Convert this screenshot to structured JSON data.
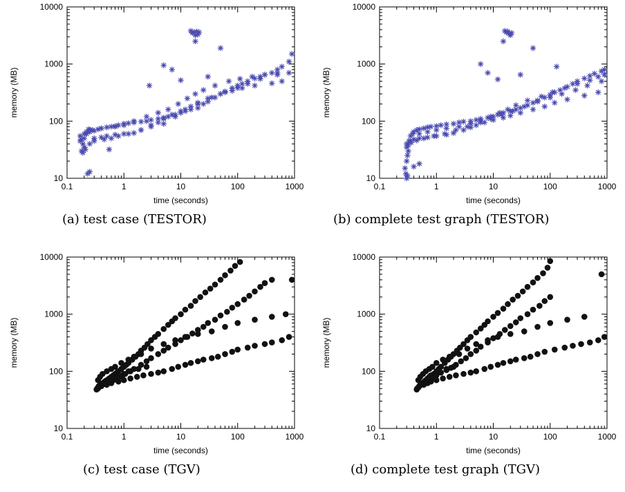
{
  "figure": {
    "marker_colors": {
      "star": "#4a4ab0",
      "dot": "#111111"
    }
  },
  "chart_data": [
    {
      "id": "a",
      "type": "scatter",
      "caption": "(a) test case (TESTOR)",
      "xlabel": "time (seconds)",
      "ylabel": "memory (MB)",
      "xscale": "log",
      "yscale": "log",
      "xlim": [
        0.1,
        1000
      ],
      "ylim": [
        10,
        10000
      ],
      "xticks": [
        "0.1",
        "1",
        "10",
        "100",
        "1000"
      ],
      "yticks": [
        "10",
        "100",
        "1000",
        "10000"
      ],
      "grid": false,
      "marker": "star",
      "color": "#4a4ab0",
      "x": [
        0.17,
        0.18,
        0.19,
        0.2,
        0.18,
        0.17,
        0.19,
        0.21,
        0.2,
        0.22,
        0.24,
        0.25,
        0.28,
        0.3,
        0.35,
        0.4,
        0.5,
        0.6,
        0.7,
        0.8,
        1,
        1.2,
        1.5,
        2,
        2.5,
        3,
        4,
        5,
        6,
        8,
        10,
        12,
        15,
        20,
        25,
        30,
        40,
        50,
        60,
        80,
        100,
        120,
        150,
        200,
        250,
        300,
        400,
        500,
        600,
        800,
        900,
        0.3,
        0.4,
        0.5,
        0.7,
        1,
        1.5,
        2,
        3,
        4,
        5,
        7,
        10,
        15,
        20,
        30,
        50,
        80,
        120,
        200,
        400,
        600,
        0.25,
        0.3,
        0.45,
        0.6,
        0.8,
        1.2,
        2,
        3,
        5,
        8,
        12,
        20,
        35,
        60,
        100,
        150,
        250,
        500,
        800,
        0.2,
        0.22,
        0.25,
        0.4,
        0.7,
        1,
        1.5,
        2.5,
        4,
        6,
        9,
        13,
        18,
        25,
        40,
        70,
        110,
        180,
        300,
        500,
        15,
        16,
        17,
        18,
        19,
        20,
        21,
        18,
        5,
        7,
        10,
        50,
        30,
        0.23,
        0.25,
        0.55,
        2.8
      ],
      "y": [
        55,
        48,
        40,
        35,
        30,
        45,
        28,
        32,
        50,
        60,
        72,
        65,
        70,
        68,
        72,
        75,
        78,
        80,
        82,
        85,
        90,
        92,
        95,
        98,
        100,
        105,
        110,
        115,
        120,
        130,
        140,
        150,
        160,
        170,
        200,
        220,
        260,
        300,
        330,
        380,
        420,
        450,
        500,
        560,
        600,
        650,
        700,
        800,
        900,
        1100,
        1500,
        50,
        52,
        55,
        58,
        60,
        62,
        70,
        80,
        95,
        110,
        130,
        150,
        180,
        210,
        250,
        300,
        340,
        380,
        420,
        460,
        500,
        40,
        45,
        48,
        50,
        55,
        60,
        70,
        85,
        90,
        120,
        160,
        200,
        260,
        320,
        380,
        450,
        550,
        650,
        700,
        60,
        65,
        70,
        75,
        80,
        85,
        100,
        120,
        140,
        160,
        200,
        250,
        300,
        350,
        420,
        500,
        550,
        600,
        650,
        700,
        3800,
        3500,
        3600,
        3200,
        3700,
        3300,
        3600,
        2500,
        950,
        800,
        520,
        1900,
        600,
        12,
        13,
        32,
        420
      ]
    },
    {
      "id": "b",
      "type": "scatter",
      "caption": "(b) complete test graph (TESTOR)",
      "xlabel": "time (seconds)",
      "ylabel": "memory (MB)",
      "xscale": "log",
      "yscale": "log",
      "xlim": [
        0.1,
        1000
      ],
      "ylim": [
        10,
        10000
      ],
      "xticks": [
        "0.1",
        "1",
        "10",
        "100",
        "1000"
      ],
      "yticks": [
        "10",
        "100",
        "1000",
        "10000"
      ],
      "grid": false,
      "marker": "star",
      "color": "#4a4ab0",
      "x": [
        0.28,
        0.29,
        0.3,
        0.31,
        0.32,
        0.3,
        0.33,
        0.35,
        0.38,
        0.4,
        0.45,
        0.5,
        0.6,
        0.7,
        0.8,
        1,
        1.2,
        1.5,
        2,
        2.5,
        3,
        4,
        5,
        6,
        8,
        10,
        12,
        15,
        20,
        25,
        30,
        40,
        50,
        60,
        80,
        100,
        120,
        150,
        200,
        250,
        300,
        400,
        500,
        600,
        800,
        900,
        0.35,
        0.4,
        0.5,
        0.7,
        1,
        1.5,
        2,
        3,
        4,
        5,
        7,
        10,
        15,
        20,
        30,
        50,
        80,
        120,
        200,
        400,
        700,
        0.3,
        0.32,
        0.36,
        0.45,
        0.6,
        0.9,
        1.4,
        2.2,
        3.5,
        6,
        9,
        14,
        22,
        35,
        60,
        100,
        160,
        280,
        450,
        800,
        0.5,
        0.7,
        1,
        1.5,
        2.5,
        4,
        6,
        9,
        13,
        18,
        25,
        40,
        70,
        110,
        180,
        300,
        500,
        700,
        900,
        16,
        17,
        18,
        19,
        20,
        21,
        15,
        6,
        8,
        12,
        50,
        30,
        130,
        0.4,
        0.5,
        0.3,
        0.31
      ],
      "y": [
        15,
        12,
        20,
        25,
        30,
        40,
        45,
        55,
        60,
        65,
        70,
        72,
        75,
        78,
        80,
        82,
        85,
        88,
        90,
        95,
        98,
        100,
        105,
        110,
        115,
        120,
        130,
        140,
        150,
        160,
        170,
        190,
        210,
        230,
        260,
        290,
        320,
        350,
        400,
        450,
        500,
        560,
        620,
        680,
        750,
        800,
        45,
        48,
        50,
        52,
        55,
        58,
        62,
        70,
        78,
        85,
        95,
        105,
        115,
        125,
        140,
        160,
        180,
        210,
        240,
        280,
        320,
        35,
        38,
        42,
        46,
        50,
        55,
        60,
        70,
        80,
        95,
        110,
        130,
        150,
        180,
        220,
        260,
        300,
        350,
        420,
        500,
        60,
        65,
        70,
        75,
        80,
        90,
        100,
        120,
        140,
        160,
        190,
        230,
        270,
        320,
        380,
        450,
        520,
        600,
        650,
        3800,
        3600,
        3700,
        3400,
        3200,
        3500,
        2500,
        1000,
        700,
        540,
        1900,
        650,
        900,
        16,
        18,
        10,
        11
      ]
    },
    {
      "id": "c",
      "type": "scatter",
      "caption": "(c) test case (TGV)",
      "xlabel": "time (seconds)",
      "ylabel": "memory (MB)",
      "xscale": "log",
      "yscale": "log",
      "xlim": [
        0.1,
        1000
      ],
      "ylim": [
        10,
        10000
      ],
      "xticks": [
        "0.1",
        "1",
        "10",
        "100",
        "1000"
      ],
      "yticks": [
        "10",
        "100",
        "1000",
        "10000"
      ],
      "grid": false,
      "marker": "dot",
      "color": "#111111",
      "x": [
        0.33,
        0.34,
        0.35,
        0.36,
        0.38,
        0.4,
        0.42,
        0.45,
        0.48,
        0.5,
        0.55,
        0.6,
        0.65,
        0.7,
        0.75,
        0.8,
        0.9,
        1,
        1.1,
        1.2,
        1.4,
        1.6,
        1.8,
        2,
        2.3,
        2.6,
        3,
        3.5,
        4,
        5,
        6,
        7,
        8,
        10,
        12,
        15,
        18,
        22,
        27,
        33,
        40,
        50,
        60,
        75,
        90,
        110,
        0.35,
        0.4,
        0.45,
        0.5,
        0.6,
        0.7,
        0.8,
        1,
        1.2,
        1.5,
        2,
        2.5,
        3,
        4,
        5,
        6,
        8,
        10,
        13,
        16,
        20,
        25,
        30,
        40,
        50,
        65,
        80,
        100,
        130,
        160,
        200,
        250,
        300,
        400,
        0.4,
        0.5,
        0.6,
        0.8,
        1,
        1.3,
        1.7,
        2.2,
        3,
        4,
        5,
        7,
        9,
        12,
        15,
        20,
        25,
        35,
        45,
        60,
        80,
        100,
        150,
        200,
        300,
        400,
        600,
        800,
        0.35,
        0.38,
        0.42,
        0.5,
        0.6,
        0.7,
        0.9,
        1.2,
        1.5,
        2,
        3,
        5,
        8,
        12,
        20,
        35,
        60,
        100,
        200,
        400,
        700,
        900,
        0.45,
        0.55,
        0.65,
        0.75,
        0.85,
        0.95,
        1.05,
        1.3,
        1.8,
        2.5
      ],
      "y": [
        48,
        50,
        52,
        55,
        58,
        60,
        62,
        65,
        68,
        70,
        75,
        80,
        85,
        90,
        95,
        100,
        110,
        120,
        130,
        140,
        160,
        180,
        200,
        230,
        260,
        300,
        350,
        400,
        450,
        550,
        650,
        750,
        850,
        1000,
        1200,
        1400,
        1700,
        2000,
        2400,
        2800,
        3300,
        4000,
        4800,
        5800,
        7000,
        8200,
        50,
        55,
        60,
        65,
        70,
        75,
        80,
        90,
        100,
        110,
        130,
        150,
        170,
        200,
        230,
        260,
        300,
        350,
        400,
        460,
        530,
        600,
        700,
        800,
        950,
        1100,
        1300,
        1500,
        1800,
        2100,
        2500,
        3000,
        3500,
        4000,
        55,
        58,
        62,
        66,
        70,
        75,
        80,
        85,
        90,
        95,
        100,
        110,
        120,
        130,
        140,
        150,
        160,
        170,
        180,
        200,
        220,
        240,
        260,
        280,
        300,
        320,
        350,
        400,
        70,
        80,
        90,
        100,
        110,
        120,
        140,
        160,
        180,
        200,
        250,
        300,
        350,
        400,
        450,
        500,
        600,
        700,
        800,
        900,
        1000,
        4000,
        60,
        65,
        70,
        75,
        80,
        85,
        90,
        100,
        110,
        120
      ]
    },
    {
      "id": "d",
      "type": "scatter",
      "caption": "(d) complete test graph (TGV)",
      "xlabel": "time (seconds)",
      "ylabel": "memory (MB)",
      "xscale": "log",
      "yscale": "log",
      "xlim": [
        0.1,
        1000
      ],
      "ylim": [
        10,
        10000
      ],
      "xticks": [
        "0.1",
        "1",
        "10",
        "100",
        "1000"
      ],
      "yticks": [
        "10",
        "100",
        "1000",
        "10000"
      ],
      "grid": false,
      "marker": "dot",
      "color": "#111111",
      "x": [
        0.45,
        0.46,
        0.48,
        0.5,
        0.52,
        0.55,
        0.58,
        0.6,
        0.65,
        0.7,
        0.75,
        0.8,
        0.9,
        1,
        1.1,
        1.2,
        1.4,
        1.6,
        1.8,
        2,
        2.3,
        2.6,
        3,
        3.5,
        4,
        5,
        6,
        7,
        8,
        10,
        12,
        15,
        18,
        22,
        27,
        33,
        40,
        50,
        60,
        75,
        90,
        100,
        0.5,
        0.55,
        0.6,
        0.7,
        0.8,
        0.9,
        1,
        1.2,
        1.5,
        1.8,
        2.2,
        2.7,
        3.3,
        4,
        5,
        6,
        8,
        10,
        13,
        16,
        20,
        25,
        30,
        40,
        50,
        65,
        80,
        100,
        0.5,
        0.6,
        0.7,
        0.8,
        1,
        1.3,
        1.7,
        2.2,
        3,
        4,
        5,
        7,
        9,
        12,
        15,
        20,
        25,
        35,
        45,
        60,
        80,
        120,
        180,
        250,
        350,
        500,
        700,
        900,
        0.48,
        0.52,
        0.58,
        0.65,
        0.75,
        0.85,
        1,
        1.3,
        1.7,
        2.5,
        3.5,
        5,
        8,
        12,
        20,
        35,
        60,
        100,
        200,
        400,
        800,
        0.55,
        0.62,
        0.68,
        0.72,
        0.78,
        0.88,
        0.95,
        1.1,
        1.5,
        2
      ],
      "y": [
        48,
        50,
        52,
        55,
        58,
        60,
        62,
        65,
        70,
        75,
        80,
        85,
        90,
        100,
        110,
        120,
        140,
        160,
        180,
        200,
        230,
        260,
        300,
        350,
        400,
        480,
        560,
        650,
        750,
        900,
        1050,
        1250,
        1500,
        1800,
        2100,
        2500,
        3000,
        3600,
        4300,
        5200,
        6500,
        8500,
        55,
        60,
        65,
        70,
        75,
        80,
        85,
        95,
        105,
        115,
        130,
        150,
        170,
        200,
        230,
        270,
        320,
        380,
        450,
        530,
        620,
        720,
        850,
        1000,
        1200,
        1400,
        1700,
        2000,
        55,
        58,
        62,
        66,
        70,
        75,
        80,
        85,
        90,
        95,
        100,
        110,
        120,
        130,
        140,
        150,
        160,
        170,
        180,
        200,
        220,
        240,
        260,
        280,
        300,
        320,
        350,
        400,
        70,
        80,
        90,
        100,
        110,
        120,
        140,
        160,
        180,
        200,
        250,
        300,
        350,
        400,
        450,
        500,
        600,
        700,
        800,
        900,
        5000,
        60,
        65,
        70,
        75,
        80,
        85,
        90,
        100,
        110,
        120
      ]
    }
  ]
}
